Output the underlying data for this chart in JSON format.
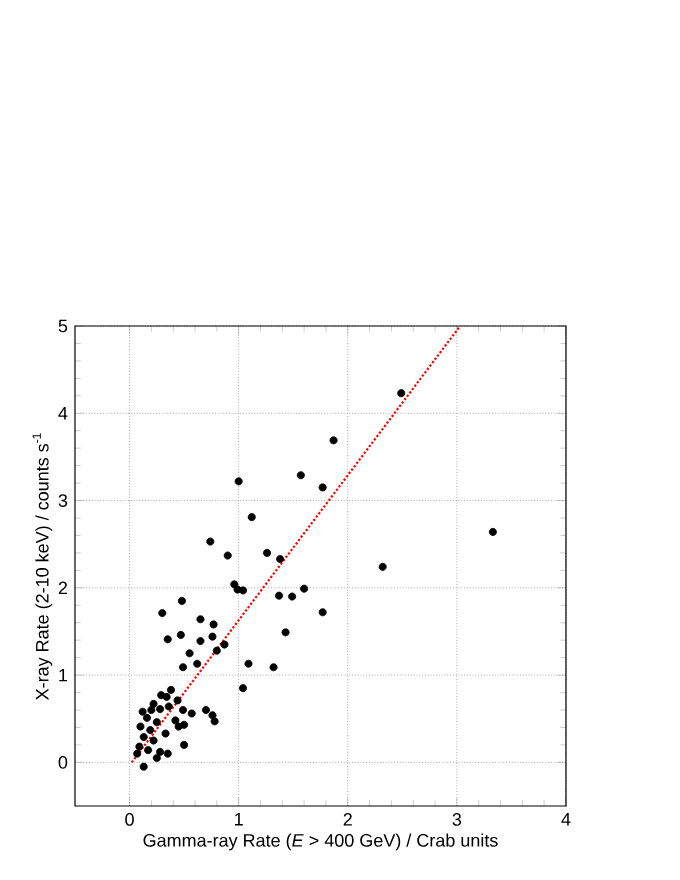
{
  "chart_data": {
    "type": "scatter",
    "xlabel": "Gamma-ray Rate (*E* > 400 GeV) / Crab units",
    "ylabel": "X-ray Rate (2-10 keV) / counts s$^{-1}$",
    "xlim": [
      -0.5,
      4
    ],
    "ylim": [
      -0.5,
      5
    ],
    "xticks": [
      0,
      1,
      2,
      3,
      4
    ],
    "yticks": [
      0,
      1,
      2,
      3,
      4,
      5
    ],
    "grid": true,
    "series": [
      {
        "color": "#000000",
        "marker": "circle",
        "x": [
          2.49,
          1.87,
          1.57,
          1.0,
          1.77,
          1.12,
          3.33,
          0.74,
          0.9,
          1.26,
          1.38,
          2.32,
          0.96,
          0.99,
          1.04,
          1.6,
          1.37,
          1.49,
          0.48,
          1.77,
          0.3,
          0.65,
          0.77,
          1.43,
          0.47,
          0.76,
          0.35,
          0.65,
          0.87,
          0.8,
          0.55,
          1.09,
          1.32,
          0.49,
          0.62,
          1.04,
          0.76,
          0.78,
          0.7,
          0.57,
          0.38,
          0.29,
          0.34,
          0.44,
          0.22,
          0.36,
          0.12,
          0.2,
          0.28,
          0.49,
          0.16,
          0.25,
          0.42,
          0.5,
          0.1,
          0.19,
          0.33,
          0.45,
          0.13,
          0.22,
          0.09,
          0.17,
          0.28,
          0.35,
          0.5,
          0.13,
          0.07,
          0.25
        ],
        "values": [
          4.23,
          3.69,
          3.29,
          3.22,
          3.15,
          2.81,
          2.64,
          2.53,
          2.37,
          2.4,
          2.33,
          2.24,
          2.04,
          1.98,
          1.97,
          1.99,
          1.91,
          1.9,
          1.85,
          1.72,
          1.71,
          1.64,
          1.58,
          1.49,
          1.46,
          1.44,
          1.41,
          1.39,
          1.35,
          1.28,
          1.25,
          1.13,
          1.09,
          1.09,
          1.13,
          0.85,
          0.54,
          0.47,
          0.6,
          0.56,
          0.83,
          0.77,
          0.75,
          0.71,
          0.67,
          0.64,
          0.58,
          0.6,
          0.61,
          0.6,
          0.51,
          0.46,
          0.48,
          0.43,
          0.41,
          0.37,
          0.33,
          0.41,
          0.29,
          0.25,
          0.18,
          0.14,
          0.12,
          0.1,
          0.2,
          -0.05,
          0.1,
          0.05
        ]
      },
      {
        "type": "line",
        "color": "#ff0000",
        "line_style": "dotted",
        "marker": "none",
        "x": [
          0.02,
          3.03
        ],
        "values": [
          0,
          5
        ]
      }
    ]
  }
}
